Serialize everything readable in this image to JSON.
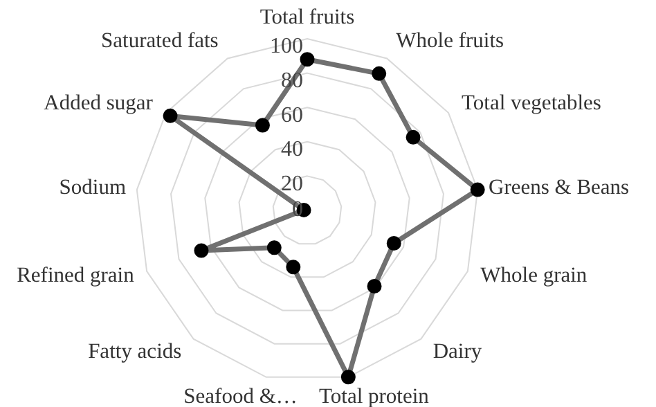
{
  "chart_data": {
    "type": "radar",
    "categories": [
      "Total fruits",
      "Whole fruits",
      "Total vegetables",
      "Greens & Beans",
      "Whole grain",
      "Dairy",
      "Total protein",
      "Seafood &…",
      "Fatty acids",
      "Refined grain",
      "Sodium",
      "Added sugar",
      "Saturated fats"
    ],
    "series": [
      {
        "color": "#707070",
        "values": [
          88,
          90,
          75,
          100,
          54,
          59,
          100,
          34,
          29,
          66,
          2,
          97,
          56
        ]
      }
    ],
    "ylim": [
      0,
      100
    ],
    "yticks": [
      0,
      20,
      40,
      60,
      80,
      100
    ],
    "grid": true,
    "legend": false,
    "marker": "circle"
  }
}
